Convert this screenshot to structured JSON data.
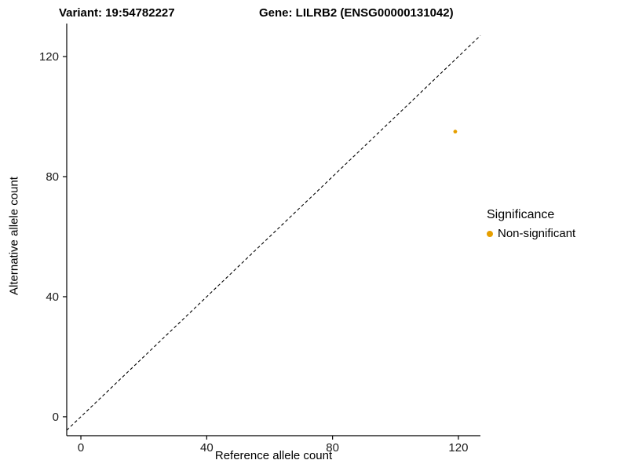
{
  "titles": {
    "left": "Variant: 19:54782227",
    "right": "Gene: LILRB2 (ENSG00000131042)"
  },
  "chart_data": {
    "type": "scatter",
    "xlabel": "Reference allele count",
    "ylabel": "Alternative allele count",
    "xlim": [
      -4.5,
      127
    ],
    "ylim": [
      -6.3,
      131
    ],
    "xticks": [
      0,
      40,
      80,
      120
    ],
    "yticks": [
      0,
      40,
      80,
      120
    ],
    "grid": false,
    "identity_line": {
      "type": "dashed",
      "color": "#000000",
      "slope": 1,
      "intercept": 0
    },
    "series": [
      {
        "name": "Non-significant",
        "color": "#E69F00",
        "point_radius": 2.4,
        "points": [
          {
            "x": 119,
            "y": 95
          }
        ]
      }
    ],
    "legend": {
      "title": "Significance",
      "position": "right",
      "entries": [
        {
          "label": "Non-significant",
          "color": "#E69F00"
        }
      ]
    }
  }
}
